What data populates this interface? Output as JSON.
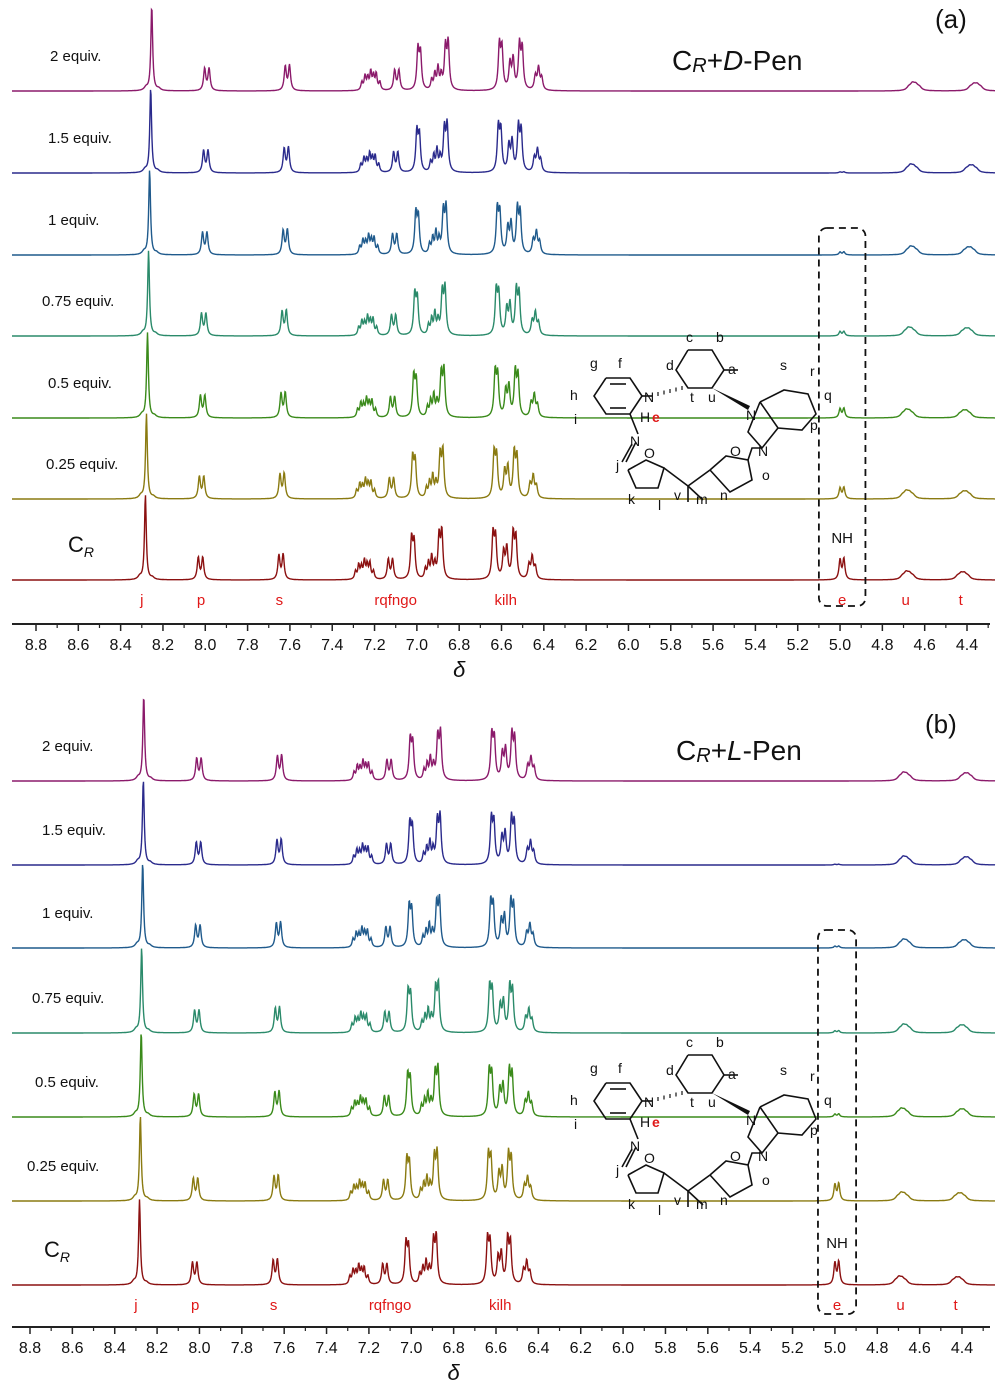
{
  "chart_data": [
    {
      "type": "line",
      "panel_label": "(a)",
      "title_parts": [
        "C",
        "R",
        "+",
        "D",
        "-Pen"
      ],
      "title": "CR+D-Pen",
      "xlabel": "δ",
      "xlim": [
        8.9,
        4.28
      ],
      "x_reversed": true,
      "xticks": [
        "8.8",
        "8.6",
        "8.4",
        "8.2",
        "8.0",
        "7.8",
        "7.6",
        "7.4",
        "7.2",
        "7.0",
        "6.8",
        "6.6",
        "6.4",
        "6.2",
        "6.0",
        "5.8",
        "5.6",
        "5.4",
        "5.2",
        "5.0",
        "4.8",
        "4.6",
        "4.4"
      ],
      "assignments": [
        {
          "label": "j",
          "ppm": 8.3
        },
        {
          "label": "p",
          "ppm": 8.02
        },
        {
          "label": "s",
          "ppm": 7.65
        },
        {
          "label": "rqfngo",
          "ppm": 7.1
        },
        {
          "label": "kilh",
          "ppm": 6.58
        },
        {
          "label": "e",
          "ppm": 4.99
        },
        {
          "label": "u",
          "ppm": 4.69
        },
        {
          "label": "t",
          "ppm": 4.43
        }
      ],
      "annotation_nh": "NH",
      "highlight_box_ppm": [
        5.1,
        4.88
      ],
      "series": [
        {
          "name": "2 equiv.",
          "color": "#8b1a6b",
          "shift": -0.03,
          "nh": 0.0,
          "u_ppm": 4.65,
          "t_ppm": 4.36
        },
        {
          "name": "1.5 equiv.",
          "color": "#2a2a8c",
          "shift": -0.025,
          "nh": 0.03,
          "u_ppm": 4.66,
          "t_ppm": 4.38
        },
        {
          "name": "1 equiv.",
          "color": "#1f5a8c",
          "shift": -0.02,
          "nh": 0.08,
          "u_ppm": 4.66,
          "t_ppm": 4.39
        },
        {
          "name": "0.75 equiv.",
          "color": "#2a8a6a",
          "shift": -0.015,
          "nh": 0.12,
          "u_ppm": 4.67,
          "t_ppm": 4.4
        },
        {
          "name": "0.5 equiv.",
          "color": "#3a8a1a",
          "shift": -0.01,
          "nh": 0.25,
          "u_ppm": 4.68,
          "t_ppm": 4.41
        },
        {
          "name": "0.25 equiv.",
          "color": "#8a7a10",
          "shift": -0.005,
          "nh": 0.3,
          "u_ppm": 4.68,
          "t_ppm": 4.41
        },
        {
          "name": "C_R",
          "color": "#8b1010",
          "shift": 0.0,
          "nh": 0.55,
          "u_ppm": 4.68,
          "t_ppm": 4.42
        }
      ]
    },
    {
      "type": "line",
      "panel_label": "(b)",
      "title_parts": [
        "C",
        "R",
        "+",
        "L",
        "-Pen"
      ],
      "title": "CR+L-Pen",
      "xlabel": "δ",
      "xlim": [
        8.9,
        4.28
      ],
      "x_reversed": true,
      "xticks": [
        "8.8",
        "8.6",
        "8.4",
        "8.2",
        "8.0",
        "7.8",
        "7.6",
        "7.4",
        "7.2",
        "7.0",
        "6.8",
        "6.6",
        "6.4",
        "6.2",
        "6.0",
        "5.8",
        "5.6",
        "5.4",
        "5.2",
        "5.0",
        "4.8",
        "4.6",
        "4.4"
      ],
      "assignments": [
        {
          "label": "j",
          "ppm": 8.3
        },
        {
          "label": "p",
          "ppm": 8.02
        },
        {
          "label": "s",
          "ppm": 7.65
        },
        {
          "label": "rqfngo",
          "ppm": 7.1
        },
        {
          "label": "kilh",
          "ppm": 6.58
        },
        {
          "label": "e",
          "ppm": 4.99
        },
        {
          "label": "u",
          "ppm": 4.69
        },
        {
          "label": "t",
          "ppm": 4.43
        }
      ],
      "annotation_nh": "NH",
      "highlight_box_ppm": [
        5.08,
        4.9
      ],
      "series": [
        {
          "name": "2 equiv.",
          "color": "#8b1a6b",
          "shift": -0.02,
          "nh": 0.0,
          "u_ppm": 4.67,
          "t_ppm": 4.38
        },
        {
          "name": "1.5 equiv.",
          "color": "#2a2a8c",
          "shift": -0.018,
          "nh": 0.02,
          "u_ppm": 4.67,
          "t_ppm": 4.38
        },
        {
          "name": "1 equiv.",
          "color": "#1f5a8c",
          "shift": -0.015,
          "nh": 0.05,
          "u_ppm": 4.67,
          "t_ppm": 4.39
        },
        {
          "name": "0.75 equiv.",
          "color": "#2a8a6a",
          "shift": -0.01,
          "nh": 0.06,
          "u_ppm": 4.67,
          "t_ppm": 4.4
        },
        {
          "name": "0.5 equiv.",
          "color": "#3a8a1a",
          "shift": -0.008,
          "nh": 0.08,
          "u_ppm": 4.68,
          "t_ppm": 4.4
        },
        {
          "name": "0.25 equiv.",
          "color": "#8a7a10",
          "shift": -0.004,
          "nh": 0.45,
          "u_ppm": 4.68,
          "t_ppm": 4.41
        },
        {
          "name": "C_R",
          "color": "#8b1010",
          "shift": 0.0,
          "nh": 0.6,
          "u_ppm": 4.69,
          "t_ppm": 4.42
        }
      ]
    }
  ],
  "structure_labels": [
    "a",
    "b",
    "c",
    "d",
    "f",
    "g",
    "h",
    "i",
    "j",
    "k",
    "l",
    "m",
    "n",
    "o",
    "p",
    "q",
    "r",
    "s",
    "t",
    "u",
    "v",
    "N",
    "NH",
    "O",
    "O"
  ],
  "structure_highlight": "e"
}
